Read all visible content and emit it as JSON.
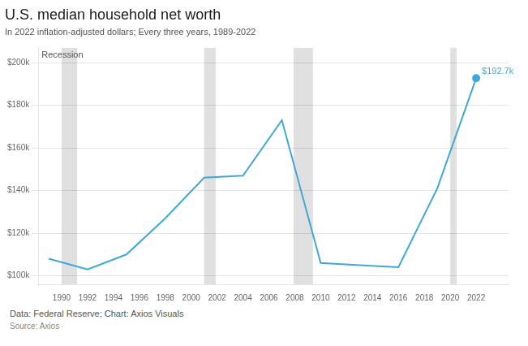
{
  "chart_data": {
    "type": "line",
    "title": "U.S. median household net worth",
    "subtitle": "In 2022 inflation-adjusted dollars; Every three years, 1989-2022",
    "x": [
      1989,
      1992,
      1995,
      1998,
      2001,
      2004,
      2007,
      2010,
      2013,
      2016,
      2019,
      2022
    ],
    "values": [
      108000,
      103000,
      110000,
      127000,
      146000,
      147000,
      173000,
      106000,
      105000,
      104000,
      141000,
      192700
    ],
    "color": "#3fa8d5",
    "xlim": [
      1988.2,
      2024.5
    ],
    "xticks": [
      1990,
      1992,
      1994,
      1996,
      1998,
      2000,
      2002,
      2004,
      2006,
      2008,
      2010,
      2012,
      2014,
      2016,
      2018,
      2020,
      2022
    ],
    "ylim": [
      96000,
      207000
    ],
    "yticks": [
      {
        "value": 100000,
        "label": "$100k"
      },
      {
        "value": 120000,
        "label": "$120k"
      },
      {
        "value": 140000,
        "label": "$140k"
      },
      {
        "value": 160000,
        "label": "$160k"
      },
      {
        "value": 180000,
        "label": "$180k"
      },
      {
        "value": 200000,
        "label": "$200k"
      }
    ],
    "grid": "y",
    "recession_bands": {
      "label": "Recession",
      "color": "#e0e0e0",
      "ranges": [
        [
          1990.0,
          1991.2
        ],
        [
          2001.0,
          2001.9
        ],
        [
          2007.9,
          2009.4
        ],
        [
          2020.0,
          2020.5
        ]
      ]
    },
    "annotations": [
      {
        "text": "$192.7k",
        "x": 2022,
        "y": 192700
      }
    ],
    "caption": "Data: Federal Reserve; Chart: Axios Visuals",
    "source": "Source: Axios"
  }
}
